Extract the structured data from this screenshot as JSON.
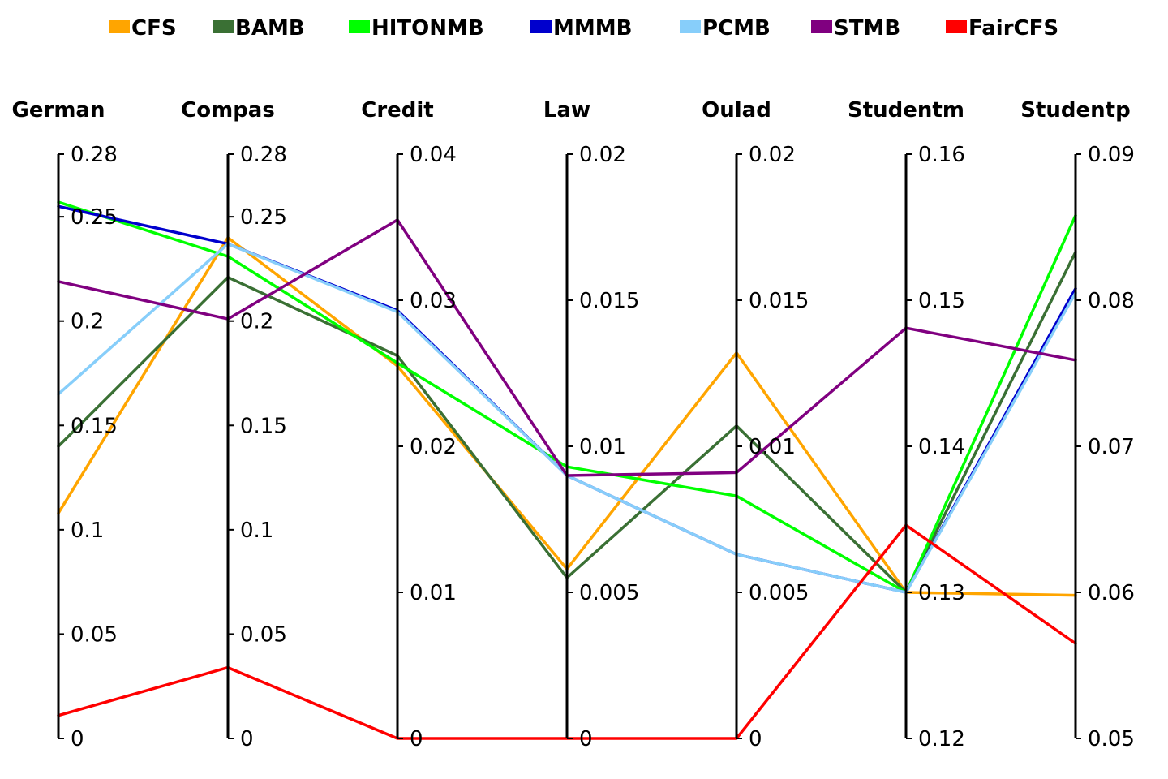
{
  "chart_data": {
    "type": "parallel-coordinates",
    "title": "",
    "legend_position": "top",
    "axes": [
      {
        "name": "German",
        "range": [
          0,
          0.28
        ],
        "ticks": [
          0,
          0.05,
          0.1,
          0.15,
          0.2,
          0.25,
          0.28
        ],
        "tick_labels": [
          "0",
          "0.05",
          "0.1",
          "0.15",
          "0.2",
          "0.25",
          "0.28"
        ]
      },
      {
        "name": "Compas",
        "range": [
          0,
          0.28
        ],
        "ticks": [
          0,
          0.05,
          0.1,
          0.15,
          0.2,
          0.25,
          0.28
        ],
        "tick_labels": [
          "0",
          "0.05",
          "0.1",
          "0.15",
          "0.2",
          "0.25",
          "0.28"
        ]
      },
      {
        "name": "Credit",
        "range": [
          0,
          0.04
        ],
        "ticks": [
          0,
          0.01,
          0.02,
          0.03,
          0.04
        ],
        "tick_labels": [
          "0",
          "0.01",
          "0.02",
          "0.03",
          "0.04"
        ]
      },
      {
        "name": "Law",
        "range": [
          0,
          0.02
        ],
        "ticks": [
          0,
          0.005,
          0.01,
          0.015,
          0.02
        ],
        "tick_labels": [
          "0",
          "0.005",
          "0.01",
          "0.015",
          "0.02"
        ]
      },
      {
        "name": "Oulad",
        "range": [
          0,
          0.02
        ],
        "ticks": [
          0,
          0.005,
          0.01,
          0.015,
          0.02
        ],
        "tick_labels": [
          "0",
          "0.005",
          "0.01",
          "0.015",
          "0.02"
        ]
      },
      {
        "name": "Studentm",
        "range": [
          0.12,
          0.16
        ],
        "ticks": [
          0.12,
          0.13,
          0.14,
          0.15,
          0.16
        ],
        "tick_labels": [
          "0.12",
          "0.13",
          "0.14",
          "0.15",
          "0.16"
        ]
      },
      {
        "name": "Studentp",
        "range": [
          0.05,
          0.09
        ],
        "ticks": [
          0.05,
          0.06,
          0.07,
          0.08,
          0.09
        ],
        "tick_labels": [
          "0.05",
          "0.06",
          "0.07",
          "0.08",
          "0.09"
        ]
      }
    ],
    "series": [
      {
        "name": "CFS",
        "color": "#FFA500",
        "values": [
          0.108,
          0.24,
          0.0255,
          0.0058,
          0.0132,
          0.13,
          0.0598
        ]
      },
      {
        "name": "BAMB",
        "color": "#3A7034",
        "values": [
          0.14,
          0.221,
          0.0262,
          0.0055,
          0.0107,
          0.13,
          0.0833
        ]
      },
      {
        "name": "HITONMB",
        "color": "#00FF00",
        "values": [
          0.257,
          0.231,
          0.0257,
          0.0093,
          0.0083,
          0.13,
          0.0858
        ]
      },
      {
        "name": "MMMB",
        "color": "#0000CD",
        "values": [
          0.255,
          0.237,
          0.0293,
          0.009,
          0.0063,
          0.13,
          0.0808
        ]
      },
      {
        "name": "PCMB",
        "color": "#87CEFA",
        "values": [
          0.165,
          0.237,
          0.0292,
          0.009,
          0.0063,
          0.13,
          0.0805
        ]
      },
      {
        "name": "STMB",
        "color": "#800080",
        "values": [
          0.219,
          0.201,
          0.0355,
          0.009,
          0.0091,
          0.1481,
          0.0759
        ]
      },
      {
        "name": "FairCFS",
        "color": "#FF0000",
        "values": [
          0.011,
          0.034,
          0.0,
          0.0,
          0.0,
          0.1346,
          0.0565
        ]
      }
    ]
  }
}
